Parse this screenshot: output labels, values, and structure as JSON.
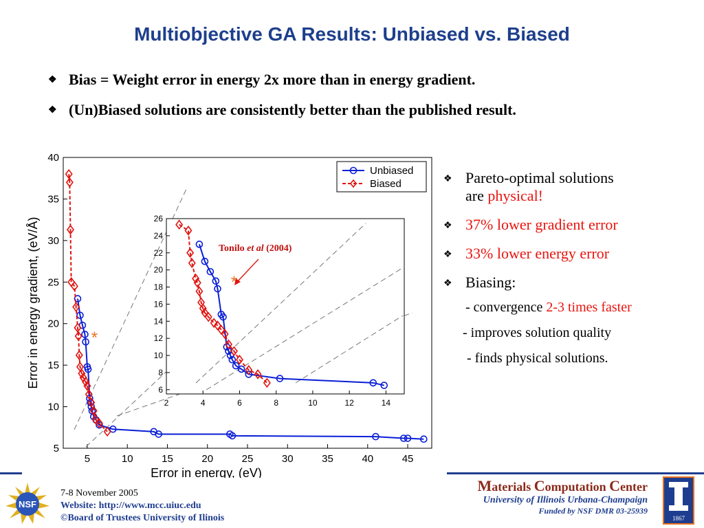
{
  "title": "Multiobjective GA Results: Unbiased vs. Biased",
  "bullets": [
    "Bias = Weight error in energy 2x more than in energy gradient.",
    "(Un)Biased solutions are consistently better than the published result."
  ],
  "right_panel": {
    "item1_line1": "Pareto-optimal solutions",
    "item1_line2_a": "are ",
    "item1_line2_b": "physical!",
    "item2": "37% lower gradient error",
    "item3": "33% lower energy error",
    "item4": "Biasing:",
    "sub1_a": "- convergence ",
    "sub1_b": "2-3 times faster",
    "sub2": "- improves solution quality",
    "sub3": "- finds physical solutions."
  },
  "footer": {
    "date": "7-8 November 2005",
    "website_label": "Website:  http://www.mcc.uiuc.edu",
    "copyright": "©Board of Trustees University of Ilinois",
    "mcc_m": "M",
    "mcc_1": "aterials ",
    "mcc_c": "C",
    "mcc_2": "omputation ",
    "mcc_c2": "C",
    "mcc_3": "enter",
    "uiuc": "University of Illinois Urbana-Champaign",
    "funded": "Funded by NSF DMR 03-25939",
    "nsf_logo_text": "NSF",
    "ui_logo_year": "1867"
  },
  "colors": {
    "unbiased": "#0a1fd6",
    "biased": "#e0140f",
    "title": "#1d3f8c"
  },
  "chart_data": {
    "type": "line",
    "xlabel": "Error in energy, (eV)",
    "ylabel": "Error in energy gradient, (eV/Å)",
    "xlim": [
      2,
      48
    ],
    "ylim": [
      5,
      40
    ],
    "xticks": [
      5,
      10,
      15,
      20,
      25,
      30,
      35,
      40,
      45
    ],
    "yticks": [
      5,
      10,
      15,
      20,
      25,
      30,
      35,
      40
    ],
    "legend": [
      "Unbiased",
      "Biased"
    ],
    "legend_position": "top-right",
    "series": [
      {
        "name": "Unbiased",
        "x": [
          3.8,
          4.1,
          4.4,
          4.7,
          4.8,
          5.0,
          5.1,
          5.3,
          5.4,
          5.5,
          5.6,
          5.8,
          6.1,
          6.5,
          8.2,
          13.3,
          13.9,
          22.8,
          23.1,
          41.0,
          44.5,
          45.0,
          47.0
        ],
        "y": [
          23.0,
          21.0,
          19.8,
          18.7,
          17.8,
          14.8,
          14.5,
          11.0,
          10.5,
          10.0,
          9.5,
          8.8,
          8.4,
          7.8,
          7.3,
          7.0,
          6.7,
          6.7,
          6.5,
          6.4,
          6.2,
          6.2,
          6.1
        ]
      },
      {
        "name": "Biased",
        "x": [
          2.7,
          2.8,
          2.9,
          3.0,
          3.4,
          3.6,
          3.8,
          3.9,
          4.0,
          4.1,
          4.3,
          4.5,
          4.8,
          5.0,
          5.2,
          5.5,
          5.8,
          6.0,
          6.5,
          7.5
        ],
        "y": [
          38.0,
          37.0,
          31.3,
          25.0,
          24.5,
          22.0,
          19.5,
          18.5,
          16.2,
          14.8,
          14.0,
          13.5,
          13.0,
          12.5,
          11.5,
          10.5,
          9.5,
          8.5,
          8.0,
          7.0
        ]
      }
    ],
    "annotation": "*",
    "annotation_point": [
      5.9,
      18.4
    ],
    "inset": {
      "xlim": [
        2,
        15
      ],
      "ylim": [
        5.5,
        26
      ],
      "xticks": [
        2,
        4,
        6,
        8,
        10,
        12,
        14
      ],
      "yticks": [
        6,
        8,
        10,
        12,
        14,
        16,
        18,
        20,
        22,
        24,
        26
      ],
      "annotation_label_a": "Tonilo ",
      "annotation_label_b": "et al",
      "annotation_label_c": " (2004)",
      "annotation_point": [
        5.7,
        18.7
      ],
      "series": [
        {
          "name": "Unbiased",
          "x": [
            3.8,
            4.1,
            4.4,
            4.7,
            4.8,
            5.0,
            5.1,
            5.3,
            5.4,
            5.5,
            5.6,
            5.8,
            6.1,
            6.5,
            8.2,
            13.3,
            13.9
          ],
          "y": [
            23.0,
            21.0,
            19.8,
            18.7,
            17.8,
            14.8,
            14.5,
            11.0,
            10.5,
            10.0,
            9.5,
            8.8,
            8.4,
            7.8,
            7.3,
            6.8,
            6.5
          ]
        },
        {
          "name": "Biased",
          "x": [
            2.7,
            3.2,
            3.3,
            3.4,
            3.6,
            3.7,
            3.8,
            3.9,
            4.0,
            4.1,
            4.3,
            4.6,
            4.8,
            5.0,
            5.2,
            5.4,
            5.7,
            6.0,
            6.5,
            7.0,
            7.5
          ],
          "y": [
            25.3,
            24.6,
            22.0,
            20.8,
            19.0,
            18.5,
            17.5,
            16.2,
            15.5,
            15.0,
            14.5,
            13.8,
            13.5,
            13.0,
            12.5,
            11.3,
            10.5,
            9.5,
            8.3,
            7.8,
            6.8
          ]
        }
      ]
    }
  }
}
